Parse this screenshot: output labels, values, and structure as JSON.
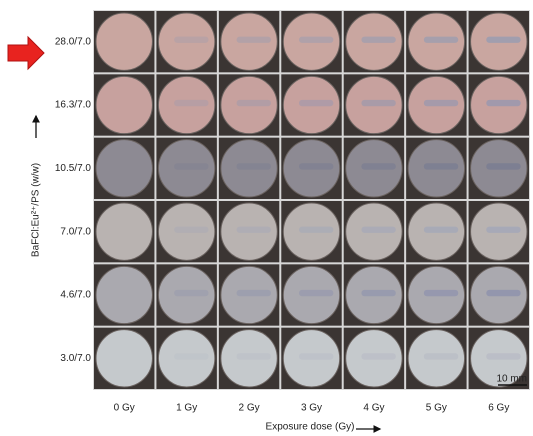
{
  "figure": {
    "rows": [
      "28.0/7.0",
      "16.3/7.0",
      "10.5/7.0",
      "7.0/7.0",
      "4.6/7.0",
      "3.0/7.0"
    ],
    "columns": [
      "0 Gy",
      "1 Gy",
      "2 Gy",
      "3 Gy",
      "4 Gy",
      "5 Gy",
      "6 Gy"
    ],
    "y_axis_label": "BaFCl:Eu²⁺/PS (w/w)",
    "x_axis_label": "Exposure dose (Gy)",
    "scale_bar": "10 mm"
  }
}
